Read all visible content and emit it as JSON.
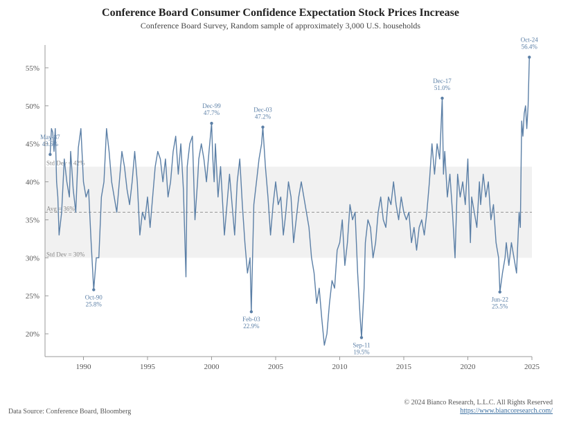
{
  "title": "Conference Board Consumer Confidence Expectation Stock Prices Increase",
  "subtitle": "Conference Board Survey, Random sample of approximately 3,000 U.S. households",
  "footer": {
    "source": "Data Source: Conference Board, Bloomberg",
    "copyright": "© 2024 Bianco Research, L.L.C. All Rights Reserved",
    "url": "https://www.biancoresearch.com/"
  },
  "chart": {
    "type": "line",
    "x_start_year": 1987,
    "x_end_year": 2025,
    "x_ticks": [
      1990,
      1995,
      2000,
      2005,
      2010,
      2015,
      2020,
      2025
    ],
    "y_ticks": [
      20,
      25,
      30,
      35,
      40,
      45,
      50,
      55
    ],
    "ylim": [
      17,
      58
    ],
    "line_color": "#5b7fa6",
    "line_width": 1.4,
    "axis_color": "#999999",
    "background": "#ffffff",
    "band": {
      "fill": "#f1f1f1",
      "avg": 36,
      "upper": 42,
      "lower": 30,
      "avg_label": "Avg = 36%",
      "upper_label": "Std Dev = 42%",
      "lower_label": "Std Dev = 30%",
      "avg_dash": "4,3",
      "avg_line_color": "#999999"
    },
    "callouts": [
      {
        "label": "May-87",
        "value_text": "43.6%",
        "year": 1987.4,
        "value": 43.6,
        "pos": "above"
      },
      {
        "label": "Oct-90",
        "value_text": "25.8%",
        "year": 1990.8,
        "value": 25.8,
        "pos": "below"
      },
      {
        "label": "Dec-99",
        "value_text": "47.7%",
        "year": 2000.0,
        "value": 47.7,
        "pos": "above"
      },
      {
        "label": "Feb-03",
        "value_text": "22.9%",
        "year": 2003.1,
        "value": 22.9,
        "pos": "below"
      },
      {
        "label": "Dec-03",
        "value_text": "47.2%",
        "year": 2004.0,
        "value": 47.2,
        "pos": "above"
      },
      {
        "label": "Sep-11",
        "value_text": "19.5%",
        "year": 2011.7,
        "value": 19.5,
        "pos": "below"
      },
      {
        "label": "Dec-17",
        "value_text": "51.0%",
        "year": 2018.0,
        "value": 51.0,
        "pos": "above"
      },
      {
        "label": "Jun-22",
        "value_text": "25.5%",
        "year": 2022.5,
        "value": 25.5,
        "pos": "below"
      },
      {
        "label": "Oct-24",
        "value_text": "56.4%",
        "year": 2024.8,
        "value": 56.4,
        "pos": "above"
      }
    ],
    "series": [
      [
        1987.4,
        43.6
      ],
      [
        1987.5,
        47.0
      ],
      [
        1987.6,
        46.5
      ],
      [
        1987.7,
        44.0
      ],
      [
        1987.8,
        47.0
      ],
      [
        1987.9,
        40.0
      ],
      [
        1988.0,
        38.0
      ],
      [
        1988.1,
        33.0
      ],
      [
        1988.3,
        36.0
      ],
      [
        1988.5,
        43.0
      ],
      [
        1988.7,
        40.0
      ],
      [
        1988.9,
        38.0
      ],
      [
        1989.0,
        44.0
      ],
      [
        1989.2,
        39.0
      ],
      [
        1989.4,
        36.0
      ],
      [
        1989.6,
        44.5
      ],
      [
        1989.8,
        47.0
      ],
      [
        1990.0,
        40.0
      ],
      [
        1990.2,
        38.0
      ],
      [
        1990.4,
        39.0
      ],
      [
        1990.6,
        32.0
      ],
      [
        1990.8,
        25.8
      ],
      [
        1991.0,
        30.0
      ],
      [
        1991.2,
        30.0
      ],
      [
        1991.4,
        38.0
      ],
      [
        1991.6,
        40.0
      ],
      [
        1991.8,
        47.0
      ],
      [
        1992.0,
        44.0
      ],
      [
        1992.2,
        40.0
      ],
      [
        1992.4,
        38.0
      ],
      [
        1992.6,
        36.0
      ],
      [
        1992.8,
        40.0
      ],
      [
        1993.0,
        44.0
      ],
      [
        1993.2,
        42.0
      ],
      [
        1993.4,
        39.0
      ],
      [
        1993.6,
        37.0
      ],
      [
        1993.8,
        40.0
      ],
      [
        1994.0,
        44.0
      ],
      [
        1994.2,
        40.0
      ],
      [
        1994.4,
        33.0
      ],
      [
        1994.6,
        36.0
      ],
      [
        1994.8,
        35.0
      ],
      [
        1995.0,
        38.0
      ],
      [
        1995.2,
        34.0
      ],
      [
        1995.4,
        38.0
      ],
      [
        1995.6,
        42.0
      ],
      [
        1995.8,
        44.0
      ],
      [
        1996.0,
        43.0
      ],
      [
        1996.2,
        40.0
      ],
      [
        1996.4,
        43.0
      ],
      [
        1996.6,
        38.0
      ],
      [
        1996.8,
        40.0
      ],
      [
        1997.0,
        44.0
      ],
      [
        1997.2,
        46.0
      ],
      [
        1997.4,
        41.0
      ],
      [
        1997.6,
        45.0
      ],
      [
        1997.8,
        39.0
      ],
      [
        1998.0,
        27.5
      ],
      [
        1998.1,
        42.0
      ],
      [
        1998.3,
        45.0
      ],
      [
        1998.5,
        46.0
      ],
      [
        1998.7,
        35.0
      ],
      [
        1998.9,
        40.0
      ],
      [
        1999.0,
        43.0
      ],
      [
        1999.2,
        45.0
      ],
      [
        1999.4,
        43.0
      ],
      [
        1999.6,
        40.0
      ],
      [
        1999.8,
        44.0
      ],
      [
        2000.0,
        47.7
      ],
      [
        2000.1,
        43.0
      ],
      [
        2000.2,
        40.0
      ],
      [
        2000.3,
        45.0
      ],
      [
        2000.5,
        38.0
      ],
      [
        2000.7,
        42.0
      ],
      [
        2000.9,
        36.0
      ],
      [
        2001.0,
        33.0
      ],
      [
        2001.2,
        37.0
      ],
      [
        2001.4,
        41.0
      ],
      [
        2001.6,
        37.0
      ],
      [
        2001.8,
        33.0
      ],
      [
        2002.0,
        40.0
      ],
      [
        2002.2,
        43.0
      ],
      [
        2002.4,
        37.0
      ],
      [
        2002.6,
        32.0
      ],
      [
        2002.8,
        28.0
      ],
      [
        2003.0,
        30.0
      ],
      [
        2003.1,
        22.9
      ],
      [
        2003.3,
        37.0
      ],
      [
        2003.5,
        40.0
      ],
      [
        2003.7,
        43.0
      ],
      [
        2003.9,
        45.0
      ],
      [
        2004.0,
        47.2
      ],
      [
        2004.2,
        42.0
      ],
      [
        2004.4,
        38.0
      ],
      [
        2004.6,
        33.0
      ],
      [
        2004.8,
        37.0
      ],
      [
        2005.0,
        40.0
      ],
      [
        2005.2,
        37.0
      ],
      [
        2005.4,
        38.0
      ],
      [
        2005.6,
        33.0
      ],
      [
        2005.8,
        36.0
      ],
      [
        2006.0,
        40.0
      ],
      [
        2006.2,
        38.0
      ],
      [
        2006.4,
        32.0
      ],
      [
        2006.6,
        35.0
      ],
      [
        2006.8,
        38.0
      ],
      [
        2007.0,
        40.0
      ],
      [
        2007.2,
        38.0
      ],
      [
        2007.4,
        36.0
      ],
      [
        2007.6,
        34.0
      ],
      [
        2007.8,
        30.0
      ],
      [
        2008.0,
        28.0
      ],
      [
        2008.2,
        24.0
      ],
      [
        2008.4,
        26.0
      ],
      [
        2008.6,
        22.0
      ],
      [
        2008.8,
        18.5
      ],
      [
        2009.0,
        20.0
      ],
      [
        2009.2,
        24.0
      ],
      [
        2009.4,
        27.0
      ],
      [
        2009.6,
        26.0
      ],
      [
        2009.8,
        31.0
      ],
      [
        2010.0,
        32.0
      ],
      [
        2010.2,
        35.0
      ],
      [
        2010.4,
        29.0
      ],
      [
        2010.6,
        32.0
      ],
      [
        2010.8,
        37.0
      ],
      [
        2011.0,
        35.0
      ],
      [
        2011.2,
        36.0
      ],
      [
        2011.4,
        28.0
      ],
      [
        2011.6,
        22.0
      ],
      [
        2011.7,
        19.5
      ],
      [
        2011.9,
        26.0
      ],
      [
        2012.0,
        32.0
      ],
      [
        2012.2,
        35.0
      ],
      [
        2012.4,
        34.0
      ],
      [
        2012.6,
        30.0
      ],
      [
        2012.8,
        32.0
      ],
      [
        2013.0,
        36.0
      ],
      [
        2013.2,
        38.0
      ],
      [
        2013.4,
        35.0
      ],
      [
        2013.6,
        34.0
      ],
      [
        2013.8,
        38.0
      ],
      [
        2014.0,
        37.0
      ],
      [
        2014.2,
        40.0
      ],
      [
        2014.4,
        37.0
      ],
      [
        2014.6,
        35.0
      ],
      [
        2014.8,
        38.0
      ],
      [
        2015.0,
        36.0
      ],
      [
        2015.2,
        35.0
      ],
      [
        2015.4,
        36.0
      ],
      [
        2015.6,
        32.0
      ],
      [
        2015.8,
        34.0
      ],
      [
        2016.0,
        31.0
      ],
      [
        2016.2,
        34.0
      ],
      [
        2016.4,
        35.0
      ],
      [
        2016.6,
        33.0
      ],
      [
        2016.8,
        36.0
      ],
      [
        2017.0,
        40.0
      ],
      [
        2017.2,
        45.0
      ],
      [
        2017.4,
        41.0
      ],
      [
        2017.6,
        45.0
      ],
      [
        2017.8,
        43.0
      ],
      [
        2018.0,
        51.0
      ],
      [
        2018.1,
        41.0
      ],
      [
        2018.2,
        44.0
      ],
      [
        2018.4,
        38.0
      ],
      [
        2018.6,
        41.0
      ],
      [
        2018.8,
        36.0
      ],
      [
        2019.0,
        30.0
      ],
      [
        2019.2,
        41.0
      ],
      [
        2019.4,
        38.0
      ],
      [
        2019.6,
        40.0
      ],
      [
        2019.8,
        37.0
      ],
      [
        2020.0,
        43.0
      ],
      [
        2020.2,
        32.0
      ],
      [
        2020.3,
        38.0
      ],
      [
        2020.5,
        36.0
      ],
      [
        2020.7,
        34.0
      ],
      [
        2020.9,
        40.0
      ],
      [
        2021.0,
        37.0
      ],
      [
        2021.2,
        41.0
      ],
      [
        2021.4,
        38.0
      ],
      [
        2021.6,
        40.0
      ],
      [
        2021.8,
        35.0
      ],
      [
        2022.0,
        37.0
      ],
      [
        2022.2,
        32.0
      ],
      [
        2022.4,
        30.0
      ],
      [
        2022.5,
        25.5
      ],
      [
        2022.7,
        28.0
      ],
      [
        2022.9,
        30.0
      ],
      [
        2023.0,
        32.0
      ],
      [
        2023.2,
        29.0
      ],
      [
        2023.4,
        32.0
      ],
      [
        2023.6,
        30.0
      ],
      [
        2023.8,
        28.0
      ],
      [
        2024.0,
        36.0
      ],
      [
        2024.1,
        34.0
      ],
      [
        2024.2,
        48.0
      ],
      [
        2024.3,
        46.0
      ],
      [
        2024.4,
        49.0
      ],
      [
        2024.5,
        50.0
      ],
      [
        2024.6,
        47.0
      ],
      [
        2024.7,
        50.0
      ],
      [
        2024.8,
        56.4
      ]
    ]
  }
}
